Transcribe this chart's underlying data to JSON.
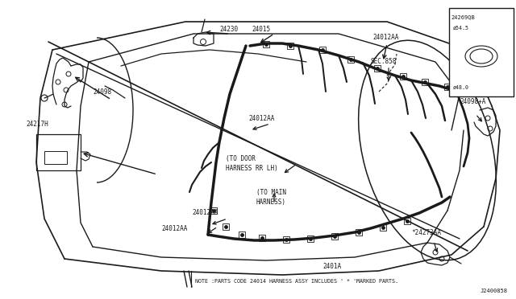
{
  "bg_color": "#ffffff",
  "fig_width": 6.4,
  "fig_height": 3.72,
  "dpi": 100,
  "note_text": "NOTE :PARTS CODE 24014 HARNESS ASSY INCLUDES ' * 'MARKED PARTS.",
  "diagram_id": "J2400858",
  "grommet_label": "24269QB",
  "grommet_d1": "ø54.5",
  "grommet_d2": "ø48.0",
  "text_color": "#1a1a1a",
  "line_color": "#1a1a1a",
  "font_size_label": 5.5,
  "font_size_note": 4.8
}
